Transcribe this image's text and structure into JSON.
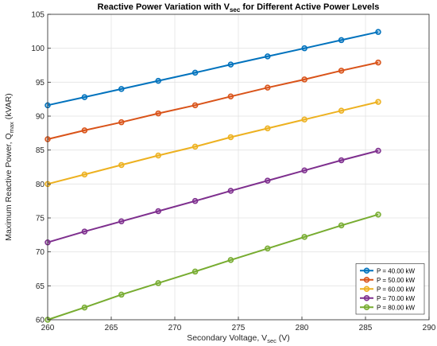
{
  "chart_data": {
    "type": "line",
    "title": "Reactive Power Variation with V",
    "title_sub": "sec",
    "title_rest": " for Different Active Power Levels",
    "xlabel": "Secondary Voltage, V",
    "xlabel_sub": "sec",
    "xlabel_rest": " (V)",
    "ylabel": "Maximum Reactive Power, Q",
    "ylabel_sub": "max",
    "ylabel_rest": " (kVAR)",
    "xlim": [
      260,
      290
    ],
    "ylim": [
      60,
      105
    ],
    "xticks": [
      260,
      265,
      270,
      275,
      280,
      285,
      290
    ],
    "yticks": [
      60,
      65,
      70,
      75,
      80,
      85,
      90,
      95,
      100,
      105
    ],
    "grid": true,
    "legend_position": "bottom-right",
    "x": [
      260,
      262.9,
      265.8,
      268.7,
      271.6,
      274.4,
      277.3,
      280.2,
      283.1,
      286
    ],
    "series": [
      {
        "name": "P = 40.00 kW",
        "color": "#0072BD",
        "values": [
          91.6,
          92.8,
          94.0,
          95.2,
          96.4,
          97.6,
          98.8,
          100.0,
          101.2,
          102.4
        ]
      },
      {
        "name": "P = 50.00 kW",
        "color": "#D95319",
        "values": [
          86.6,
          87.9,
          89.1,
          90.4,
          91.6,
          92.9,
          94.2,
          95.4,
          96.7,
          97.9
        ]
      },
      {
        "name": "P = 60.00 kW",
        "color": "#EDB120",
        "values": [
          80.0,
          81.4,
          82.8,
          84.2,
          85.5,
          86.9,
          88.2,
          89.5,
          90.8,
          92.1
        ]
      },
      {
        "name": "P = 70.00 kW",
        "color": "#7E2F8E",
        "values": [
          71.4,
          73.0,
          74.5,
          76.0,
          77.5,
          79.0,
          80.5,
          82.0,
          83.5,
          84.9
        ]
      },
      {
        "name": "P = 80.00 kW",
        "color": "#77AC30",
        "values": [
          60.0,
          61.8,
          63.7,
          65.4,
          67.1,
          68.8,
          70.5,
          72.2,
          73.9,
          75.5
        ]
      }
    ]
  }
}
